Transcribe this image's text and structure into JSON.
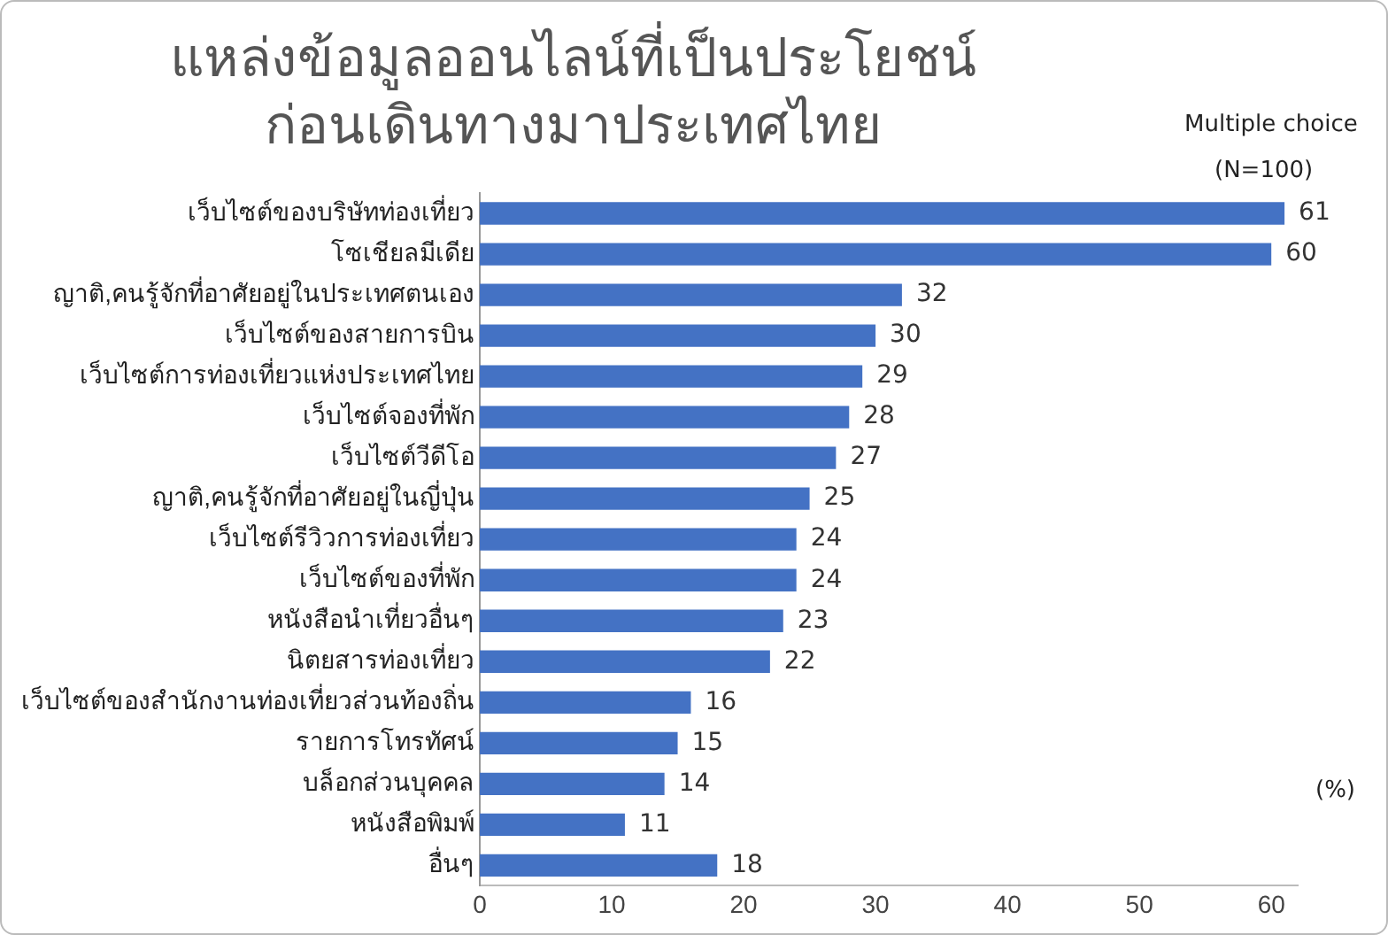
{
  "chart_data": {
    "type": "bar",
    "orientation": "horizontal",
    "title": "แหล่งข้อมูลออนไลน์ที่เป็นประโยชน์\nก่อนเดินทางมาประเทศไทย",
    "annotations": [
      "Multiple choice",
      "(N=100)",
      "(%)"
    ],
    "categories": [
      "เว็บไซต์ของบริษัทท่องเที่ยว",
      "โซเชียลมีเดีย",
      "ญาติ,คนรู้จักที่อาศัยอยู่ในประเทศตนเอง",
      "เว็บไซต์ของสายการบิน",
      "เว็บไซต์การท่องเที่ยวแห่งประเทศไทย",
      "เว็บไซต์จองที่พัก",
      "เว็บไซต์วีดีโอ",
      "ญาติ,คนรู้จักที่อาศัยอยู่ในญี่ปุ่น",
      "เว็บไซต์รีวิวการท่องเที่ยว",
      "เว็บไซต์ของที่พัก",
      "หนังสือนำเที่ยวอื่นๆ",
      "นิตยสารท่องเที่ยว",
      "เว็บไซต์ของสำนักงานท่องเที่ยวส่วนท้องถิ่น",
      "รายการโทรทัศน์",
      "บล็อกส่วนบุคคล",
      "หนังสือพิมพ์",
      "อื่นๆ"
    ],
    "values": [
      61,
      60,
      32,
      30,
      29,
      28,
      27,
      25,
      24,
      24,
      23,
      22,
      16,
      15,
      14,
      11,
      18
    ],
    "color": "#4472c4",
    "data_labels": true,
    "grid": false,
    "legend": false,
    "xlim": [
      0,
      62
    ],
    "xticks": [
      0,
      10,
      20,
      30,
      40,
      50,
      60
    ]
  }
}
